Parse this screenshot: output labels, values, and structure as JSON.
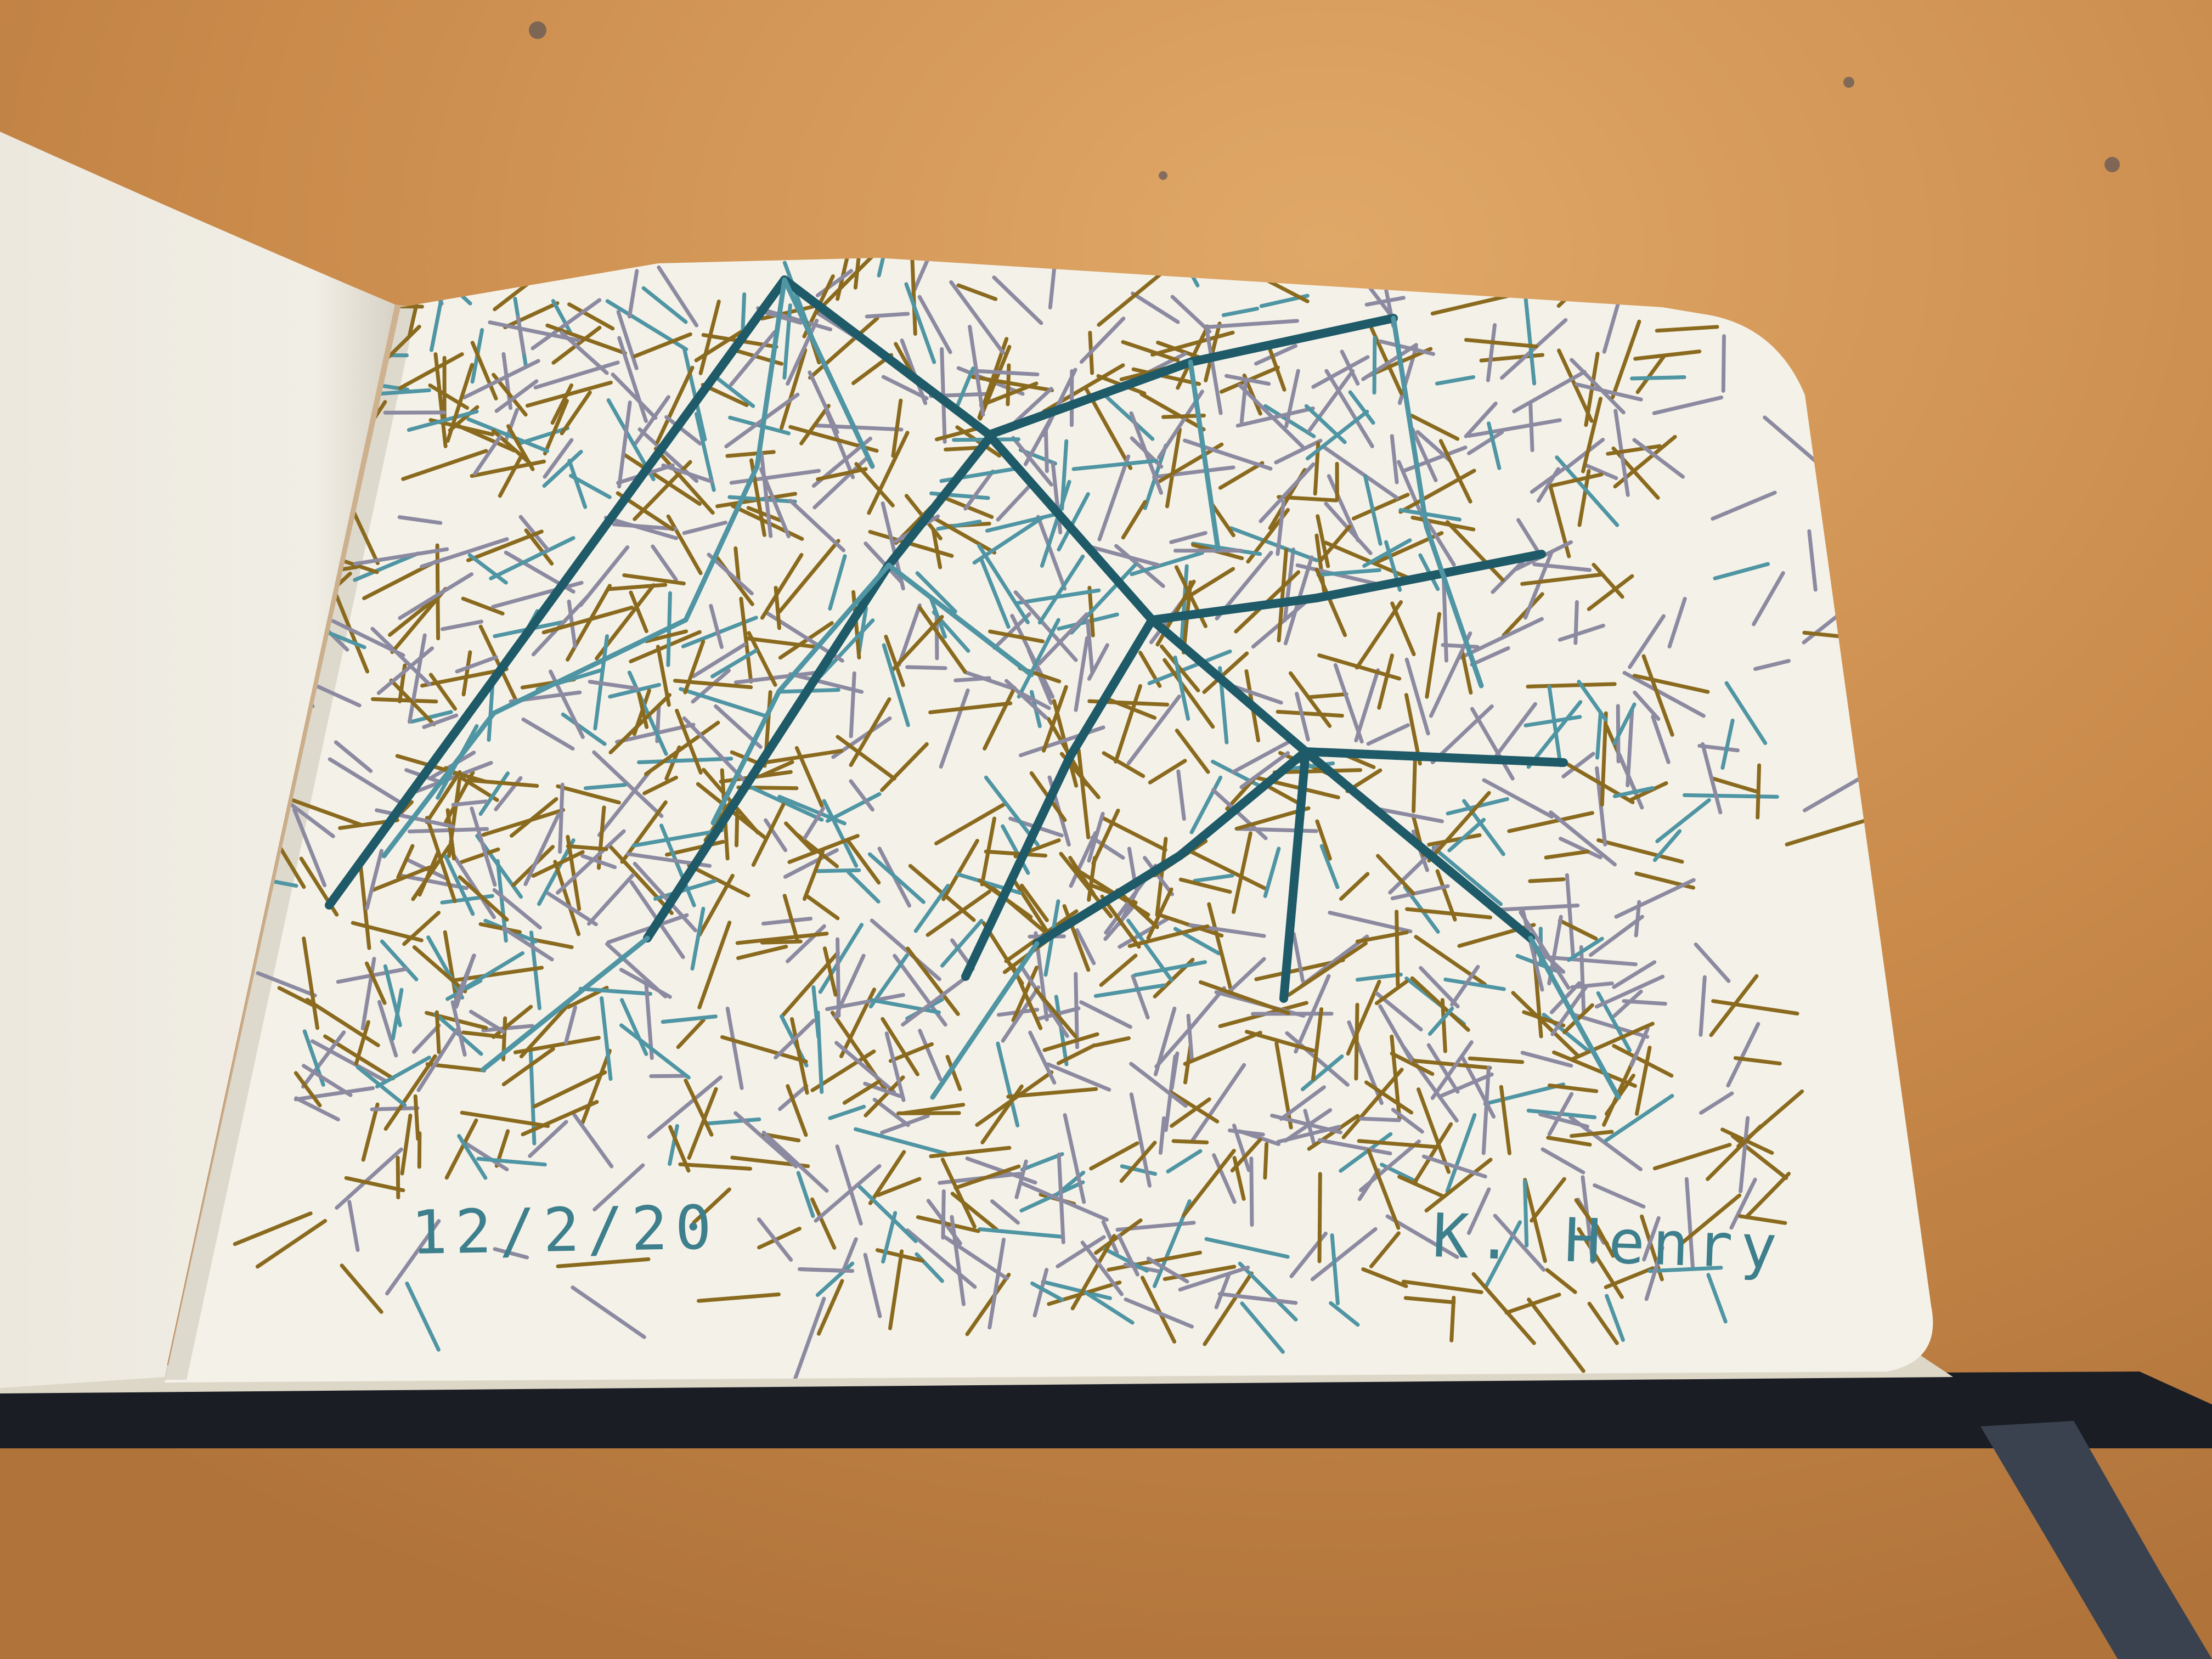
{
  "photo": {
    "subject": "sketchbook-drawing",
    "ink_colors": {
      "dark_teal": "#1f5a68",
      "light_teal": "#4f95a3",
      "gold": "#8a6a1e",
      "lavender_gray": "#8c8aa0"
    },
    "table_color": "#c98a4a",
    "paper_color": "#f4f1e8"
  },
  "annotations": {
    "date": "12/2/20",
    "signature": "K. Henry"
  }
}
